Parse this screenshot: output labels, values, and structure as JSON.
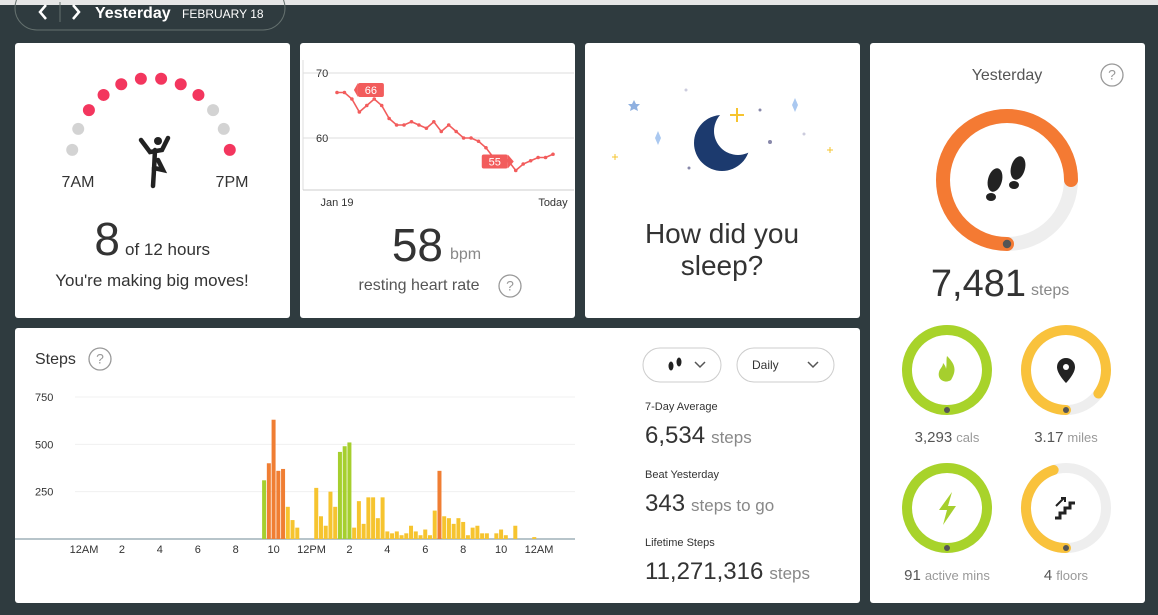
{
  "header": {
    "title": "Yesterday",
    "date": "FEBRUARY 18"
  },
  "hourly_activity": {
    "hours": "8",
    "of": "of 12 hours",
    "message": "You're making big moves!",
    "start_label": "7AM",
    "end_label": "7PM",
    "active": [
      false,
      false,
      true,
      true,
      true,
      true,
      true,
      true,
      true,
      false,
      false,
      true
    ]
  },
  "heart_rate": {
    "value": "58",
    "unit": "bpm",
    "label": "resting heart rate"
  },
  "sleep": {
    "question": "How did you sleep?"
  },
  "summary": {
    "title": "Yesterday",
    "steps": "7,481",
    "steps_unit": "steps",
    "tiles": [
      {
        "value": "3,293",
        "unit": "cals"
      },
      {
        "value": "3.17",
        "unit": "miles"
      },
      {
        "value": "91",
        "unit": "active mins"
      },
      {
        "value": "4",
        "unit": "floors"
      }
    ]
  },
  "steps_panel": {
    "title": "Steps",
    "period": "Daily",
    "stats": [
      {
        "label": "7-Day Average",
        "value": "6,534",
        "unit": "steps"
      },
      {
        "label": "Beat Yesterday",
        "value": "343",
        "unit": "steps to go"
      },
      {
        "label": "Lifetime Steps",
        "value": "11,271,316",
        "unit": "steps"
      }
    ]
  },
  "chart_data": [
    {
      "type": "line",
      "categories": [
        "Jan 19",
        null,
        null,
        null,
        null,
        null,
        null,
        null,
        null,
        null,
        null,
        null,
        null,
        null,
        null,
        null,
        null,
        null,
        null,
        null,
        null,
        null,
        null,
        null,
        null,
        null,
        null,
        null,
        null,
        "Today"
      ],
      "values": [
        67,
        67,
        66,
        64,
        65,
        66,
        65,
        63,
        62,
        62,
        62.5,
        62,
        61.5,
        62.5,
        61,
        62,
        61,
        60,
        60,
        59.5,
        58.5,
        57,
        57,
        56.5,
        55,
        56,
        56.5,
        57,
        57,
        57.5
      ],
      "labeled_points": [
        2,
        24
      ],
      "color": "#f25c5c",
      "ylim": [
        52,
        72
      ],
      "yticks": [
        60,
        70
      ],
      "grid": true
    },
    {
      "type": "bar",
      "x": [
        9.5,
        9.75,
        10,
        10.25,
        10.5,
        10.75,
        11,
        11.25,
        12.25,
        12.5,
        12.75,
        13,
        13.25,
        13.5,
        13.75,
        14,
        14.25,
        14.5,
        14.75,
        15,
        15.25,
        15.5,
        15.75,
        16,
        16.25,
        16.5,
        16.75,
        17,
        17.25,
        17.5,
        17.75,
        18,
        18.25,
        18.5,
        18.75,
        19,
        19.25,
        19.5,
        19.75,
        20,
        20.25,
        20.5,
        20.75,
        21,
        21.25,
        21.75,
        22,
        22.25,
        22.75,
        23.75
      ],
      "values": [
        310,
        400,
        630,
        360,
        370,
        170,
        100,
        60,
        270,
        120,
        70,
        250,
        170,
        460,
        490,
        510,
        60,
        200,
        80,
        220,
        220,
        110,
        220,
        40,
        30,
        40,
        20,
        30,
        70,
        40,
        20,
        50,
        20,
        150,
        360,
        120,
        110,
        80,
        110,
        90,
        20,
        60,
        70,
        30,
        30,
        30,
        50,
        20,
        70,
        10
      ],
      "colors": [
        "#a6cf2e",
        "#f07e33",
        "#f07e33",
        "#f07e33",
        "#f07e33",
        "#f6c42f",
        "#f6c42f",
        "#f6c42f",
        "#f6c42f",
        "#f6c42f",
        "#f6c42f",
        "#f6c42f",
        "#f6c42f",
        "#a6cf2e",
        "#a6cf2e",
        "#a6cf2e",
        "#f6c42f",
        "#f6c42f",
        "#f6c42f",
        "#f6c42f",
        "#f6c42f",
        "#f6c42f",
        "#f6c42f",
        "#f6c42f",
        "#f6c42f",
        "#f6c42f",
        "#f6c42f",
        "#f6c42f",
        "#f6c42f",
        "#f6c42f",
        "#f6c42f",
        "#f6c42f",
        "#f6c42f",
        "#f6c42f",
        "#f07e33",
        "#f6c42f",
        "#f6c42f",
        "#f6c42f",
        "#f6c42f",
        "#f6c42f",
        "#f6c42f",
        "#f6c42f",
        "#f6c42f",
        "#f6c42f",
        "#f6c42f",
        "#f6c42f",
        "#f6c42f",
        "#f6c42f",
        "#f6c42f",
        "#f6c42f"
      ],
      "xlim": [
        0,
        24
      ],
      "xticks": [
        {
          "value": 0,
          "label": "12AM"
        },
        2,
        4,
        6,
        8,
        10,
        {
          "value": 12,
          "label": "12PM"
        },
        {
          "value": 14,
          "label": "2"
        },
        {
          "value": 16,
          "label": "4"
        },
        {
          "value": 18,
          "label": "6"
        },
        {
          "value": 20,
          "label": "8"
        },
        {
          "value": 22,
          "label": "10"
        },
        {
          "value": 24,
          "label": "12AM"
        }
      ],
      "ylim": [
        0,
        750
      ],
      "yticks": [
        250,
        500,
        750
      ],
      "grid": true
    }
  ]
}
